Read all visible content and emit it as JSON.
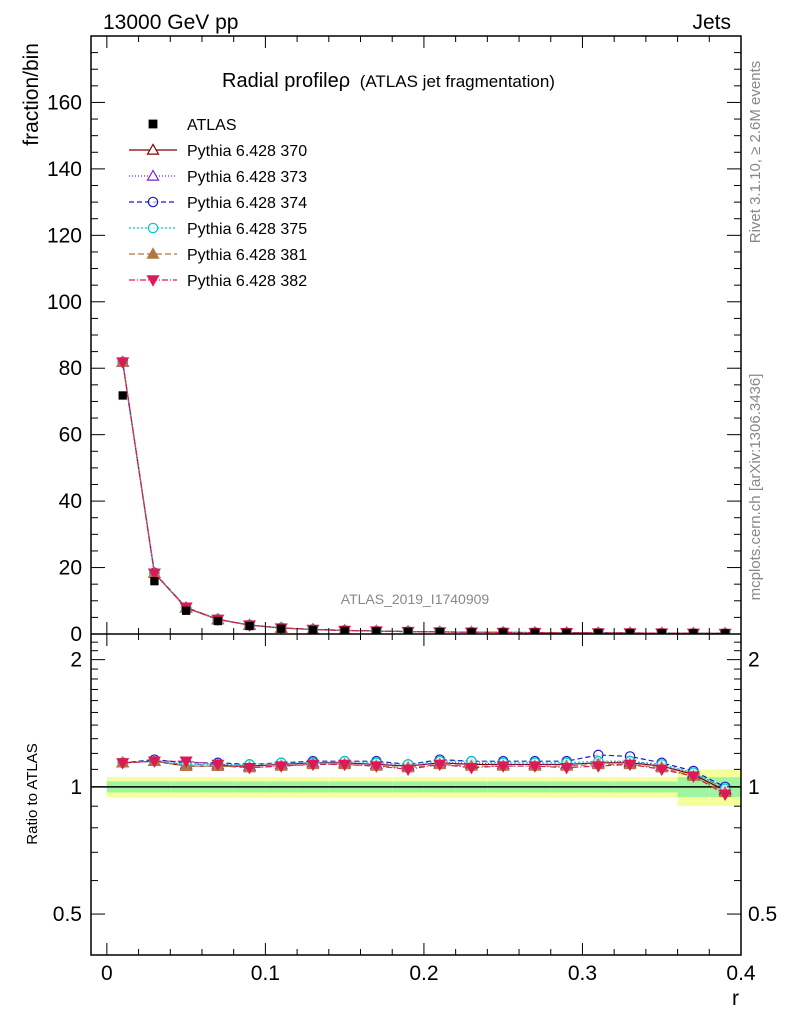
{
  "header": {
    "left": "13000 GeV pp",
    "right": "Jets"
  },
  "side": {
    "rivet": "Rivet 3.1.10, ≥ 2.6M events",
    "mcplots": "mcplots.cern.ch [arXiv:1306.3436]"
  },
  "chart_data": {
    "type": "line",
    "title": "Radial profile",
    "title_symbol": "ρ",
    "subtitle": "(ATLAS jet fragmentation)",
    "analysis_id": "ATLAS_2019_I1740909",
    "xlabel": "r",
    "ylabel": "fraction/bin",
    "ratio_ylabel": "Ratio to ATLAS",
    "xlim": [
      -0.01,
      0.4
    ],
    "ylim": [
      0,
      180
    ],
    "ratio_ylim": [
      0.4,
      2.3
    ],
    "ratio_scale": "log",
    "x_ticks": [
      "0",
      "0.1",
      "0.2",
      "0.3",
      "0.4"
    ],
    "y_ticks": [
      "0",
      "20",
      "40",
      "60",
      "80",
      "100",
      "120",
      "140",
      "160"
    ],
    "ratio_ticks": [
      "0.5",
      "1",
      "2"
    ],
    "legend_position": "top-left",
    "x": [
      0.01,
      0.03,
      0.05,
      0.07,
      0.09,
      0.11,
      0.13,
      0.15,
      0.17,
      0.19,
      0.21,
      0.23,
      0.25,
      0.27,
      0.29,
      0.31,
      0.33,
      0.35,
      0.37,
      0.39
    ],
    "data": {
      "name": "ATLAS",
      "values": [
        71.8,
        15.9,
        7.0,
        3.9,
        2.4,
        1.6,
        1.2,
        0.95,
        0.78,
        0.65,
        0.55,
        0.48,
        0.42,
        0.37,
        0.33,
        0.29,
        0.26,
        0.23,
        0.2,
        0.18
      ],
      "band_inner": 0.03,
      "band_outer": 0.055
    },
    "series": [
      {
        "name": "Pythia 6.428 370",
        "color": "#800000",
        "dash": "",
        "marker": "triangle-open",
        "ratios": [
          1.14,
          1.15,
          1.12,
          1.12,
          1.12,
          1.13,
          1.14,
          1.14,
          1.13,
          1.12,
          1.14,
          1.13,
          1.13,
          1.13,
          1.13,
          1.14,
          1.14,
          1.12,
          1.07,
          0.98
        ]
      },
      {
        "name": "Pythia 6.428 373",
        "color": "#7b1fdb",
        "dash": "1,2",
        "marker": "triangle-open",
        "ratios": [
          1.14,
          1.15,
          1.13,
          1.13,
          1.12,
          1.13,
          1.14,
          1.14,
          1.13,
          1.12,
          1.14,
          1.14,
          1.13,
          1.13,
          1.13,
          1.14,
          1.15,
          1.12,
          1.08,
          0.99
        ]
      },
      {
        "name": "Pythia 6.428 374",
        "color": "#1a1acc",
        "dash": "5,3",
        "marker": "circle-open",
        "ratios": [
          1.14,
          1.16,
          1.14,
          1.14,
          1.13,
          1.14,
          1.15,
          1.15,
          1.15,
          1.13,
          1.16,
          1.15,
          1.15,
          1.15,
          1.15,
          1.19,
          1.18,
          1.14,
          1.09,
          1.0
        ]
      },
      {
        "name": "Pythia 6.428 375",
        "color": "#00c8c8",
        "dash": "2,2",
        "marker": "circle-open",
        "ratios": [
          1.14,
          1.15,
          1.13,
          1.13,
          1.13,
          1.14,
          1.14,
          1.15,
          1.14,
          1.13,
          1.15,
          1.15,
          1.14,
          1.14,
          1.14,
          1.15,
          1.15,
          1.13,
          1.08,
          0.99
        ]
      },
      {
        "name": "Pythia 6.428 381",
        "color": "#b07840",
        "dash": "6,3",
        "marker": "triangle-filled",
        "ratios": [
          1.14,
          1.15,
          1.12,
          1.12,
          1.11,
          1.12,
          1.13,
          1.13,
          1.12,
          1.11,
          1.13,
          1.12,
          1.12,
          1.12,
          1.12,
          1.13,
          1.13,
          1.11,
          1.06,
          0.97
        ]
      },
      {
        "name": "Pythia 6.428 382",
        "color": "#dd1a55",
        "dash": "6,2,1,2",
        "marker": "triangle-down-filled",
        "ratios": [
          1.14,
          1.15,
          1.15,
          1.13,
          1.11,
          1.12,
          1.13,
          1.13,
          1.12,
          1.1,
          1.13,
          1.11,
          1.12,
          1.12,
          1.11,
          1.12,
          1.13,
          1.1,
          1.06,
          0.96
        ]
      }
    ]
  }
}
